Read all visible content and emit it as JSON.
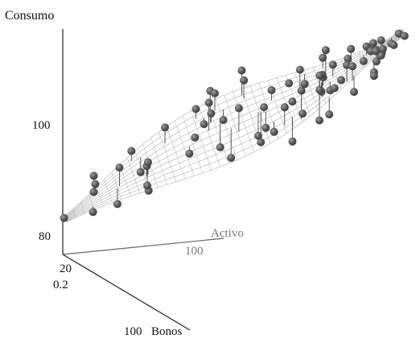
{
  "chart_data": {
    "type": "scatter",
    "title": "",
    "axis_labels": {
      "z": "Consumo",
      "x": "Activo",
      "y": "Bonos"
    },
    "tick_labels": {
      "z": [
        "100",
        "80"
      ],
      "x": [
        "100"
      ],
      "y_front": [
        "20",
        "0.2",
        "100"
      ]
    },
    "surface": "fitted regression surface (mesh) shown through the point cloud",
    "grid": false,
    "legend": "none",
    "colors": {
      "points": "#555555",
      "points_highlight": "#9a9a9a",
      "surface_mesh": "#b8b8b8",
      "axes": "#222222",
      "faint_label": "#7a7a7a"
    }
  }
}
